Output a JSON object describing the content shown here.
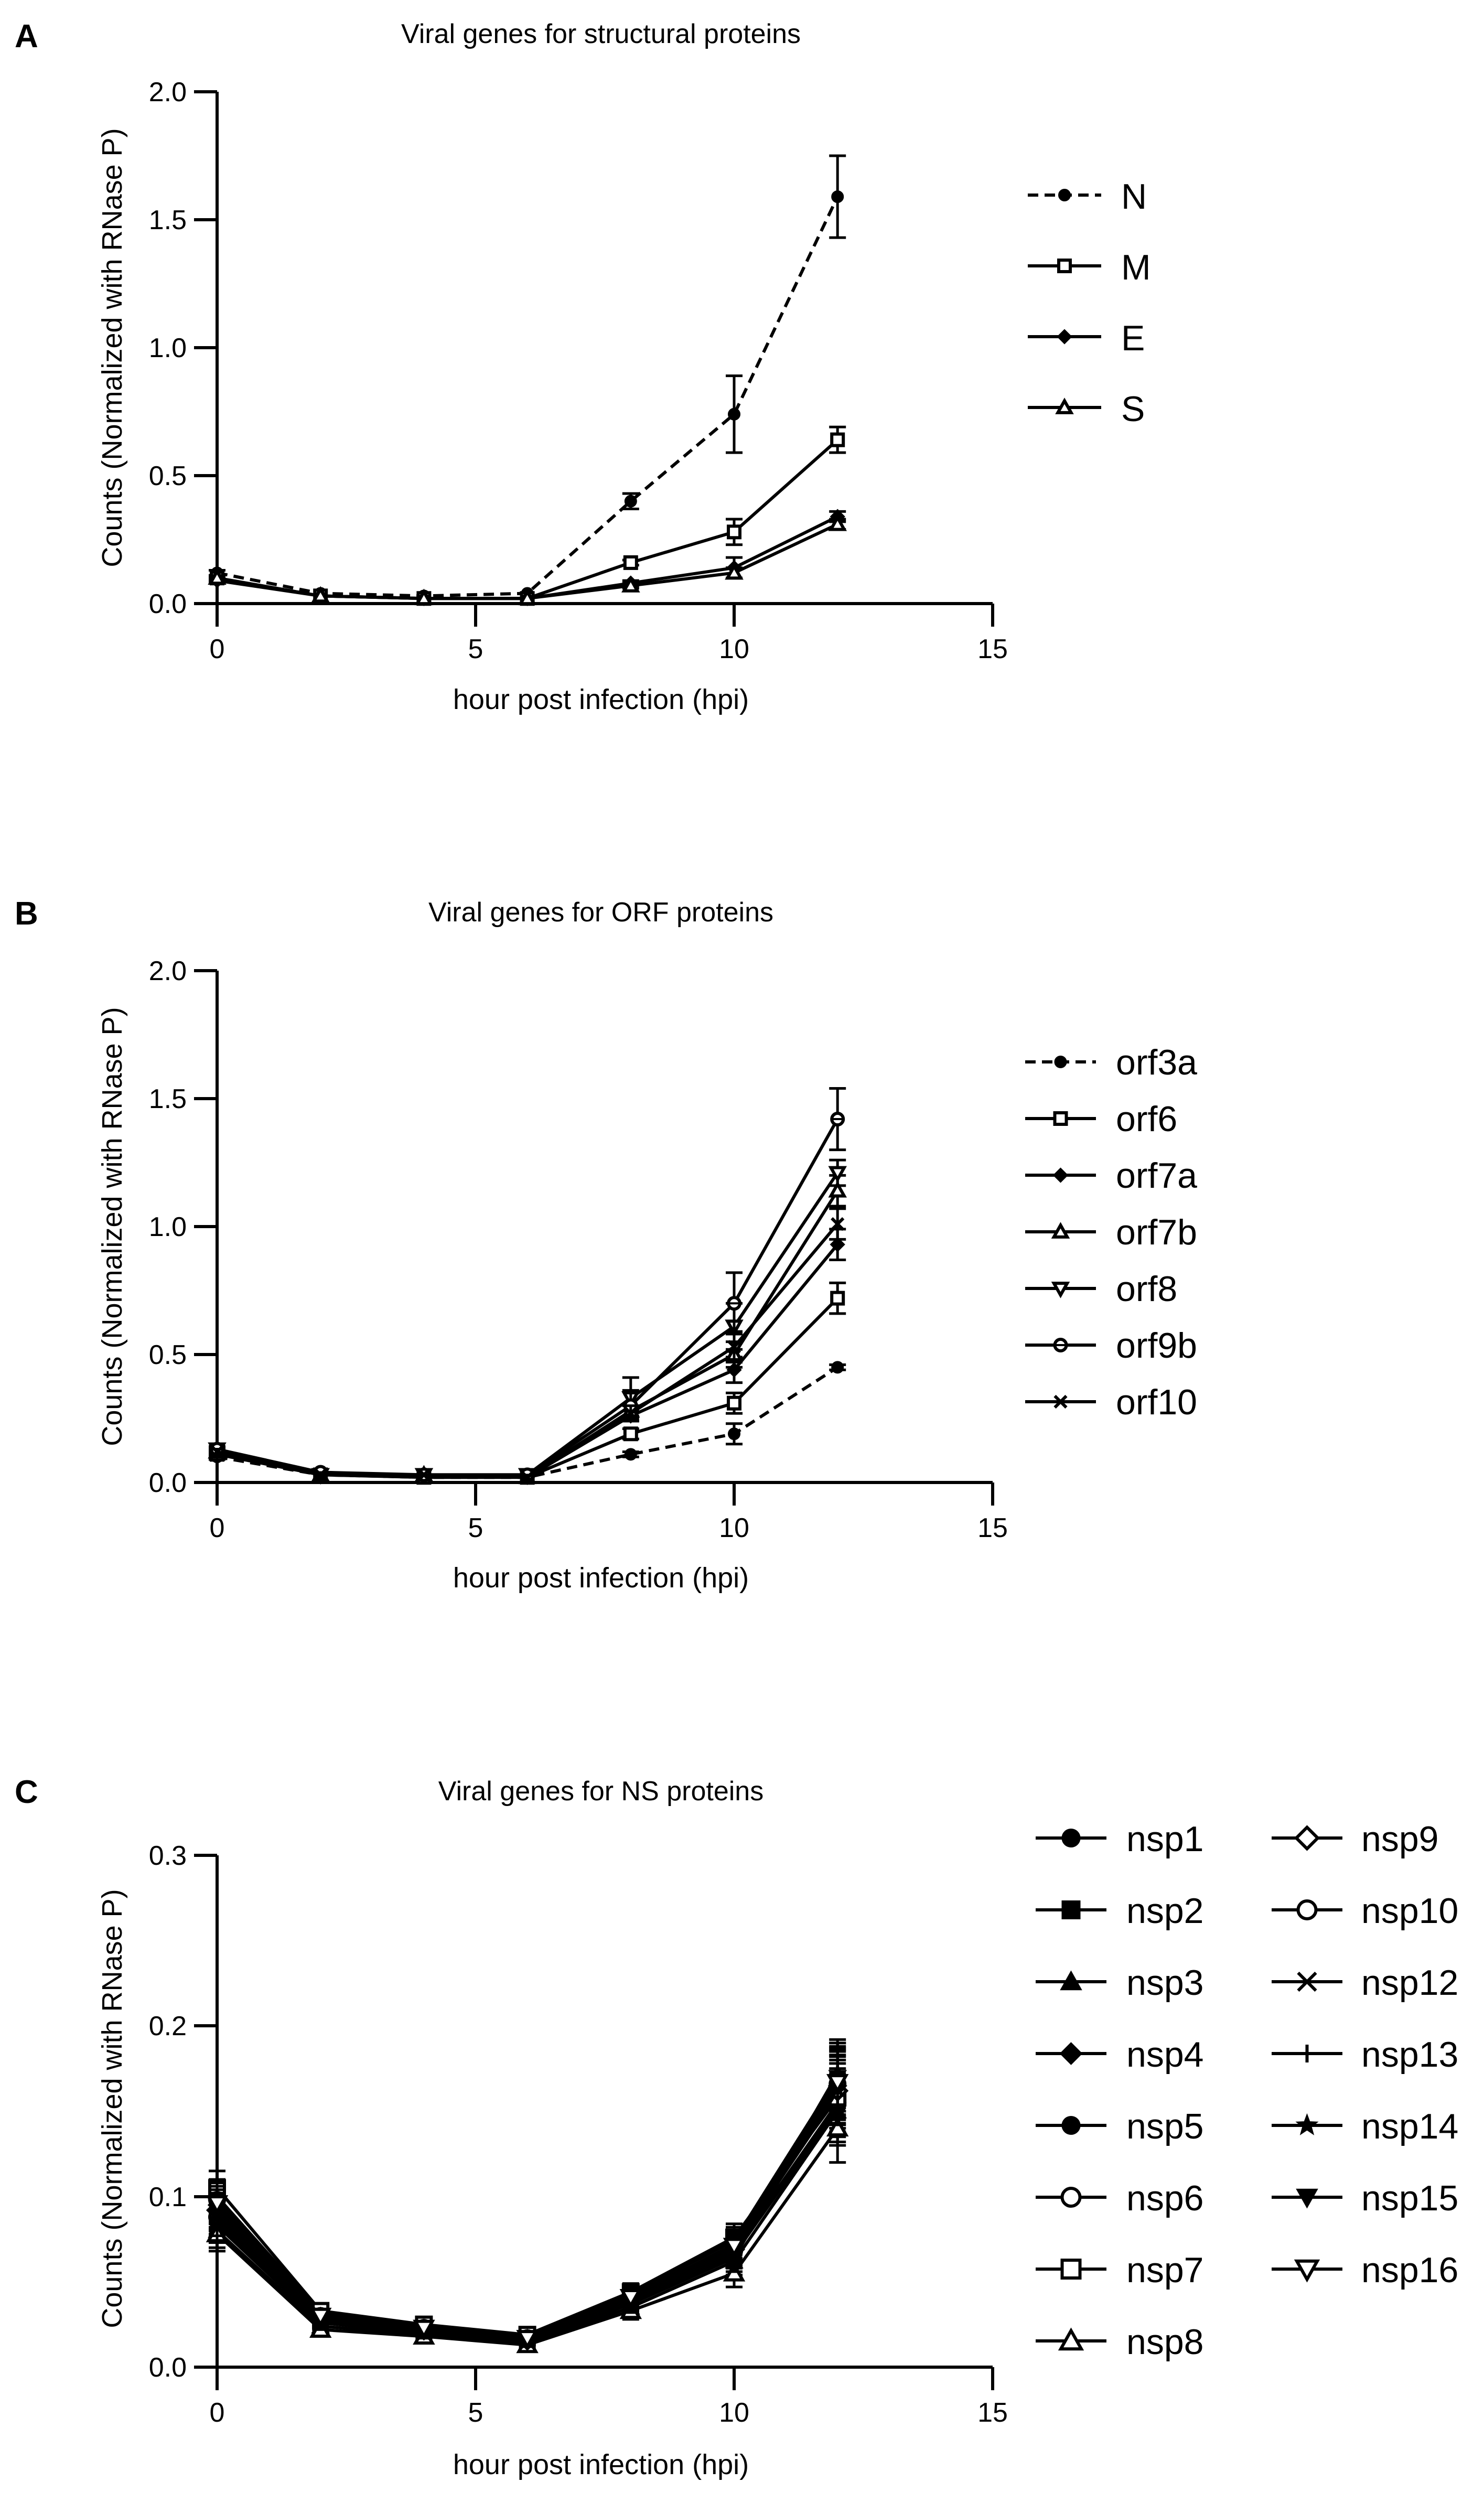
{
  "figure": {
    "background": "#ffffff",
    "ink": "#000000"
  },
  "chart_data": [
    {
      "type": "line",
      "panel": "A",
      "title": "Viral genes for structural proteins",
      "xlabel": "hour post infection (hpi)",
      "ylabel": "Counts (Normalized with RNase P)",
      "xlim": [
        0,
        15
      ],
      "ylim": [
        0,
        2.0
      ],
      "xticks": [
        "0",
        "5",
        "10",
        "15"
      ],
      "yticks": [
        "0.0",
        "0.5",
        "1.0",
        "1.5",
        "2.0"
      ],
      "x": [
        0,
        2,
        4,
        6,
        8,
        10,
        12
      ],
      "legend_position": "right",
      "series": [
        {
          "name": "N",
          "marker": "filled-circle",
          "dash": true,
          "values": [
            0.12,
            0.04,
            0.03,
            0.04,
            0.4,
            0.74,
            1.59
          ],
          "errors": [
            0.01,
            0.005,
            0.005,
            0.005,
            0.03,
            0.15,
            0.16
          ]
        },
        {
          "name": "M",
          "marker": "open-square",
          "dash": false,
          "values": [
            0.1,
            0.03,
            0.02,
            0.02,
            0.16,
            0.28,
            0.64
          ],
          "errors": [
            0.01,
            0.005,
            0.005,
            0.005,
            0.01,
            0.05,
            0.05
          ]
        },
        {
          "name": "E",
          "marker": "filled-diamond",
          "dash": false,
          "values": [
            0.09,
            0.03,
            0.02,
            0.02,
            0.08,
            0.14,
            0.34
          ],
          "errors": [
            0.01,
            0.005,
            0.005,
            0.005,
            0.01,
            0.04,
            0.02
          ]
        },
        {
          "name": "S",
          "marker": "open-triangle",
          "dash": false,
          "values": [
            0.1,
            0.03,
            0.02,
            0.02,
            0.07,
            0.12,
            0.31
          ],
          "errors": [
            0.01,
            0.005,
            0.005,
            0.005,
            0.01,
            0.02,
            0.02
          ]
        }
      ]
    },
    {
      "type": "line",
      "panel": "B",
      "title": "Viral genes for ORF proteins",
      "xlabel": "hour post infection (hpi)",
      "ylabel": "Counts (Normalized with RNase P)",
      "xlim": [
        0,
        15
      ],
      "ylim": [
        0,
        2.0
      ],
      "xticks": [
        "0",
        "5",
        "10",
        "15"
      ],
      "yticks": [
        "0.0",
        "0.5",
        "1.0",
        "1.5",
        "2.0"
      ],
      "x": [
        0,
        2,
        4,
        6,
        8,
        10,
        12
      ],
      "legend_position": "right",
      "series": [
        {
          "name": "orf3a",
          "marker": "filled-circle",
          "dash": true,
          "values": [
            0.1,
            0.03,
            0.02,
            0.02,
            0.11,
            0.19,
            0.45
          ],
          "errors": [
            0.01,
            0.005,
            0.005,
            0.005,
            0.01,
            0.04,
            0.01
          ]
        },
        {
          "name": "orf6",
          "marker": "open-square",
          "dash": false,
          "values": [
            0.11,
            0.03,
            0.02,
            0.02,
            0.19,
            0.31,
            0.72
          ],
          "errors": [
            0.01,
            0.005,
            0.005,
            0.005,
            0.02,
            0.04,
            0.06
          ]
        },
        {
          "name": "orf7a",
          "marker": "filled-diamond",
          "dash": false,
          "values": [
            0.12,
            0.03,
            0.03,
            0.02,
            0.26,
            0.44,
            0.93
          ],
          "errors": [
            0.01,
            0.005,
            0.005,
            0.005,
            0.02,
            0.05,
            0.06
          ]
        },
        {
          "name": "orf7b",
          "marker": "open-triangle",
          "dash": false,
          "values": [
            0.12,
            0.03,
            0.03,
            0.02,
            0.28,
            0.5,
            1.14
          ],
          "errors": [
            0.01,
            0.005,
            0.005,
            0.005,
            0.02,
            0.05,
            0.06
          ]
        },
        {
          "name": "orf8",
          "marker": "open-inverted-triangle",
          "dash": false,
          "values": [
            0.13,
            0.03,
            0.03,
            0.03,
            0.33,
            0.61,
            1.21
          ],
          "errors": [
            0.01,
            0.005,
            0.005,
            0.005,
            0.08,
            0.09,
            0.05
          ]
        },
        {
          "name": "orf9b",
          "marker": "open-circle-bar",
          "dash": false,
          "values": [
            0.13,
            0.04,
            0.03,
            0.03,
            0.3,
            0.7,
            1.42
          ],
          "errors": [
            0.01,
            0.005,
            0.005,
            0.005,
            0.06,
            0.12,
            0.12
          ]
        },
        {
          "name": "orf10",
          "marker": "x",
          "dash": false,
          "values": [
            0.12,
            0.03,
            0.03,
            0.02,
            0.27,
            0.53,
            1.01
          ],
          "errors": [
            0.01,
            0.005,
            0.005,
            0.005,
            0.03,
            0.06,
            0.06
          ]
        }
      ]
    },
    {
      "type": "line",
      "panel": "C",
      "title": "Viral genes for NS proteins",
      "xlabel": "hour post infection (hpi)",
      "ylabel": "Counts (Normalized with RNase P)",
      "xlim": [
        0,
        15
      ],
      "ylim": [
        0,
        0.3
      ],
      "xticks": [
        "0",
        "5",
        "10",
        "15"
      ],
      "yticks": [
        "0.0",
        "0.1",
        "0.2",
        "0.3"
      ],
      "x": [
        0,
        2,
        4,
        6,
        8,
        10,
        12
      ],
      "legend_position": "right",
      "series": [
        {
          "name": "nsp1",
          "marker": "filled-circle",
          "dash": false,
          "values": [
            0.085,
            0.027,
            0.021,
            0.016,
            0.038,
            0.066,
            0.152
          ],
          "errors": [
            0.01,
            0.004,
            0.003,
            0.003,
            0.005,
            0.008,
            0.02
          ]
        },
        {
          "name": "nsp2",
          "marker": "filled-square",
          "dash": false,
          "values": [
            0.09,
            0.03,
            0.022,
            0.017,
            0.04,
            0.07,
            0.16
          ],
          "errors": [
            0.01,
            0.004,
            0.003,
            0.003,
            0.005,
            0.008,
            0.02
          ]
        },
        {
          "name": "nsp3",
          "marker": "filled-triangle",
          "dash": false,
          "values": [
            0.08,
            0.024,
            0.019,
            0.014,
            0.035,
            0.062,
            0.15
          ],
          "errors": [
            0.01,
            0.004,
            0.003,
            0.003,
            0.005,
            0.008,
            0.02
          ]
        },
        {
          "name": "nsp4",
          "marker": "filled-diamond",
          "dash": false,
          "values": [
            0.095,
            0.031,
            0.023,
            0.017,
            0.041,
            0.072,
            0.165
          ],
          "errors": [
            0.01,
            0.004,
            0.003,
            0.003,
            0.005,
            0.008,
            0.02
          ]
        },
        {
          "name": "nsp5",
          "marker": "filled-circle",
          "dash": false,
          "values": [
            0.1,
            0.032,
            0.024,
            0.018,
            0.043,
            0.074,
            0.17
          ],
          "errors": [
            0.01,
            0.004,
            0.003,
            0.003,
            0.005,
            0.008,
            0.02
          ]
        },
        {
          "name": "nsp6",
          "marker": "open-circle",
          "dash": false,
          "values": [
            0.088,
            0.028,
            0.021,
            0.016,
            0.039,
            0.068,
            0.155
          ],
          "errors": [
            0.01,
            0.004,
            0.003,
            0.003,
            0.005,
            0.008,
            0.02
          ]
        },
        {
          "name": "nsp7",
          "marker": "open-square",
          "dash": false,
          "values": [
            0.105,
            0.033,
            0.025,
            0.019,
            0.044,
            0.076,
            0.158
          ],
          "errors": [
            0.01,
            0.004,
            0.003,
            0.003,
            0.005,
            0.008,
            0.02
          ]
        },
        {
          "name": "nsp8",
          "marker": "open-triangle",
          "dash": false,
          "values": [
            0.078,
            0.022,
            0.018,
            0.013,
            0.033,
            0.055,
            0.14
          ],
          "errors": [
            0.01,
            0.004,
            0.003,
            0.003,
            0.005,
            0.008,
            0.02
          ]
        },
        {
          "name": "nsp9",
          "marker": "open-diamond",
          "dash": false,
          "values": [
            0.092,
            0.029,
            0.022,
            0.016,
            0.04,
            0.069,
            0.162
          ],
          "errors": [
            0.01,
            0.004,
            0.003,
            0.003,
            0.005,
            0.008,
            0.02
          ]
        },
        {
          "name": "nsp10",
          "marker": "open-circle",
          "dash": false,
          "values": [
            0.098,
            0.03,
            0.023,
            0.017,
            0.042,
            0.071,
            0.166
          ],
          "errors": [
            0.01,
            0.004,
            0.003,
            0.003,
            0.005,
            0.008,
            0.02
          ]
        },
        {
          "name": "nsp12",
          "marker": "x",
          "dash": false,
          "values": [
            0.083,
            0.026,
            0.02,
            0.015,
            0.037,
            0.064,
            0.168
          ],
          "errors": [
            0.01,
            0.004,
            0.003,
            0.003,
            0.005,
            0.008,
            0.02
          ]
        },
        {
          "name": "nsp13",
          "marker": "plus",
          "dash": false,
          "values": [
            0.087,
            0.027,
            0.021,
            0.016,
            0.038,
            0.067,
            0.172
          ],
          "errors": [
            0.01,
            0.004,
            0.003,
            0.003,
            0.005,
            0.008,
            0.02
          ]
        },
        {
          "name": "nsp14",
          "marker": "star",
          "dash": false,
          "values": [
            0.091,
            0.028,
            0.021,
            0.016,
            0.039,
            0.068,
            0.163
          ],
          "errors": [
            0.01,
            0.004,
            0.003,
            0.003,
            0.005,
            0.008,
            0.02
          ]
        },
        {
          "name": "nsp15",
          "marker": "filled-inverted-triangle",
          "dash": false,
          "values": [
            0.094,
            0.029,
            0.022,
            0.017,
            0.04,
            0.07,
            0.17
          ],
          "errors": [
            0.01,
            0.004,
            0.003,
            0.003,
            0.005,
            0.008,
            0.02
          ]
        },
        {
          "name": "nsp16",
          "marker": "open-inverted-triangle",
          "dash": false,
          "values": [
            0.096,
            0.03,
            0.023,
            0.017,
            0.041,
            0.071,
            0.167
          ],
          "errors": [
            0.01,
            0.004,
            0.003,
            0.003,
            0.005,
            0.008,
            0.02
          ]
        }
      ]
    }
  ]
}
